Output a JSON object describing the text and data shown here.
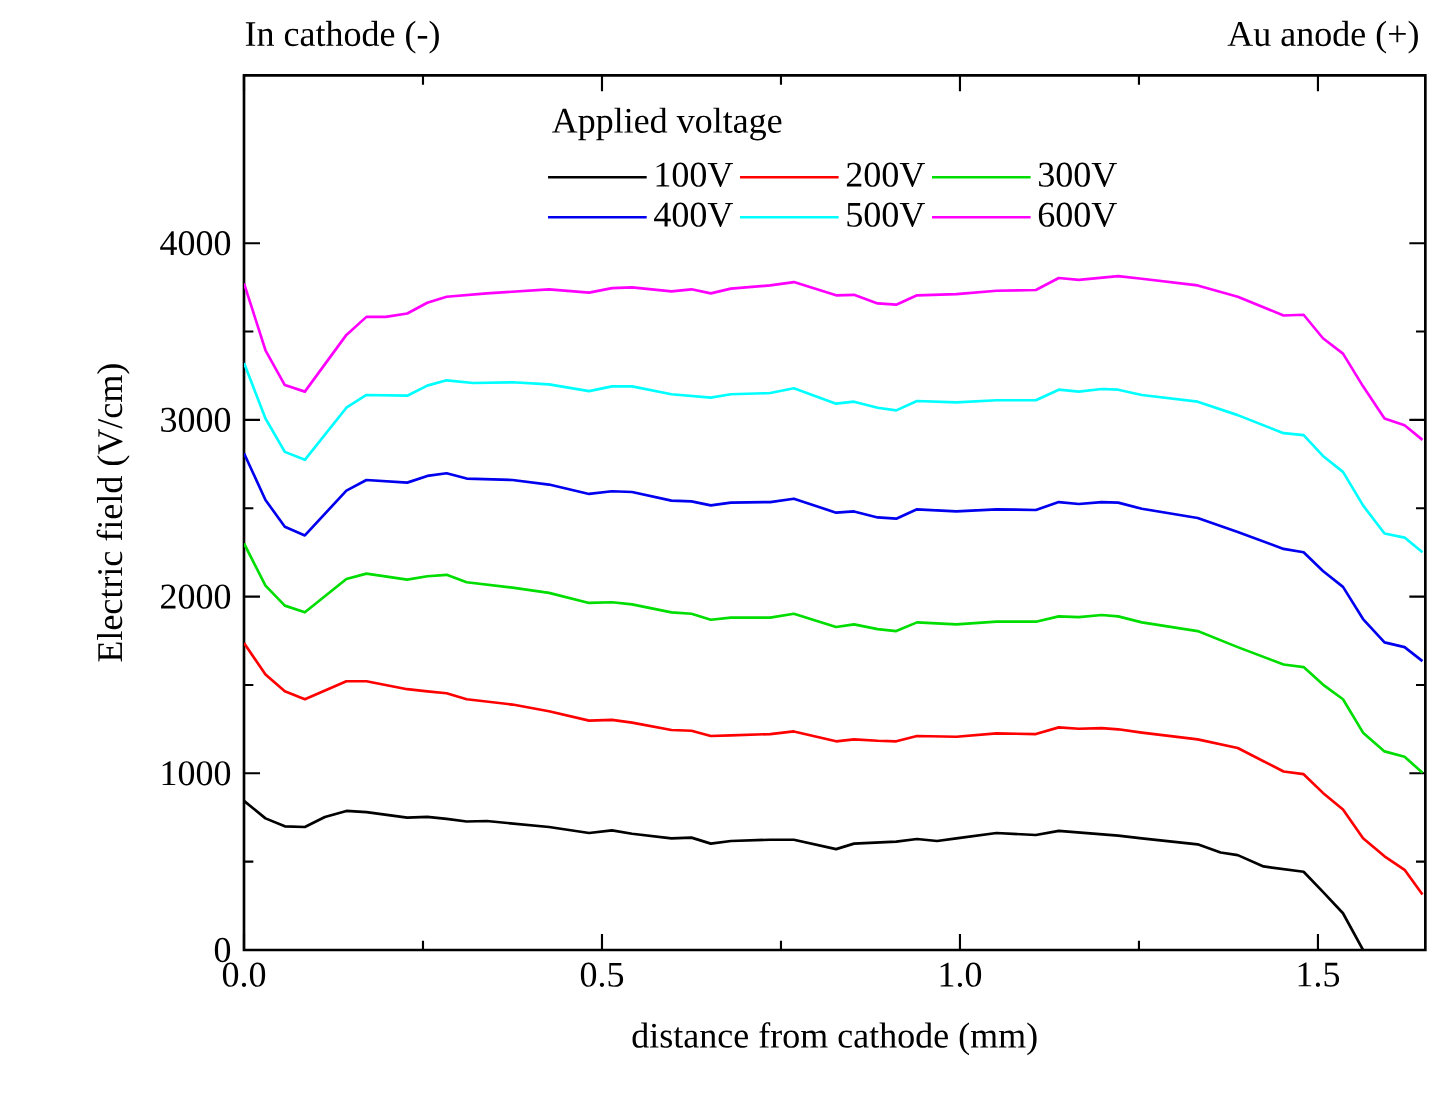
{
  "chart_data": {
    "type": "line",
    "xlabel": "distance from cathode (mm)",
    "ylabel": "Electric field (V/cm)",
    "legend_title": "Applied voltage",
    "annotations": [
      "In cathode (-)",
      "Au anode (+)"
    ],
    "xlim": [
      0,
      1.65
    ],
    "ylim": [
      0,
      4950
    ],
    "xticks": [
      {
        "value": 0,
        "label": "0.0"
      },
      {
        "value": 0.5,
        "label": "0.5"
      },
      {
        "value": 1.0,
        "label": "1.0"
      },
      {
        "value": 1.5,
        "label": "1.5"
      }
    ],
    "yticks": [
      0,
      1000,
      2000,
      3000,
      4000
    ],
    "legend": "top",
    "grid": false,
    "marker": "none",
    "line_style": "solid",
    "series": [
      {
        "name": "100V",
        "color": "#000000",
        "x": [
          0,
          0.03,
          0.057,
          0.085,
          0.113,
          0.143,
          0.171,
          0.228,
          0.256,
          0.283,
          0.311,
          0.339,
          0.426,
          0.482,
          0.514,
          0.542,
          0.597,
          0.625,
          0.652,
          0.68,
          0.735,
          0.768,
          0.827,
          0.852,
          0.911,
          0.94,
          0.968,
          0.995,
          1.051,
          1.106,
          1.138,
          1.221,
          1.254,
          1.332,
          1.364,
          1.388,
          1.424,
          1.48,
          1.507,
          1.535,
          1.563
        ],
        "values": [
          844,
          745,
          700,
          696,
          753,
          787,
          780,
          749,
          753,
          742,
          727,
          730,
          696,
          662,
          677,
          658,
          632,
          636,
          602,
          617,
          624,
          624,
          571,
          602,
          613,
          628,
          617,
          632,
          662,
          651,
          674,
          647,
          632,
          598,
          552,
          537,
          473,
          443,
          329,
          208,
          0
        ]
      },
      {
        "name": "200V",
        "color": "#ff0000",
        "x": [
          0,
          0.03,
          0.057,
          0.085,
          0.143,
          0.171,
          0.228,
          0.256,
          0.283,
          0.311,
          0.375,
          0.426,
          0.482,
          0.514,
          0.542,
          0.597,
          0.625,
          0.652,
          0.68,
          0.735,
          0.768,
          0.827,
          0.852,
          0.885,
          0.911,
          0.94,
          0.995,
          1.051,
          1.106,
          1.138,
          1.166,
          1.198,
          1.221,
          1.254,
          1.332,
          1.388,
          1.452,
          1.48,
          1.507,
          1.535,
          1.563,
          1.593,
          1.621,
          1.646
        ],
        "values": [
          1737,
          1559,
          1464,
          1419,
          1521,
          1521,
          1476,
          1464,
          1453,
          1419,
          1389,
          1351,
          1298,
          1302,
          1287,
          1245,
          1241,
          1211,
          1215,
          1222,
          1237,
          1181,
          1192,
          1184,
          1181,
          1211,
          1207,
          1226,
          1222,
          1260,
          1252,
          1256,
          1249,
          1230,
          1192,
          1143,
          1010,
          995,
          889,
          795,
          632,
          530,
          454,
          314
        ]
      },
      {
        "name": "300V",
        "color": "#00dd00",
        "x": [
          0,
          0.03,
          0.057,
          0.085,
          0.143,
          0.171,
          0.228,
          0.256,
          0.283,
          0.311,
          0.375,
          0.426,
          0.482,
          0.514,
          0.542,
          0.597,
          0.625,
          0.652,
          0.68,
          0.735,
          0.768,
          0.827,
          0.852,
          0.885,
          0.911,
          0.94,
          0.995,
          1.051,
          1.106,
          1.138,
          1.166,
          1.198,
          1.221,
          1.254,
          1.332,
          1.388,
          1.452,
          1.48,
          1.507,
          1.535,
          1.563,
          1.593,
          1.621,
          1.646
        ],
        "values": [
          2301,
          2062,
          1949,
          1911,
          2100,
          2130,
          2096,
          2115,
          2123,
          2081,
          2051,
          2021,
          1964,
          1968,
          1956,
          1911,
          1903,
          1869,
          1881,
          1881,
          1903,
          1828,
          1843,
          1816,
          1805,
          1854,
          1843,
          1858,
          1858,
          1888,
          1884,
          1896,
          1888,
          1854,
          1805,
          1714,
          1616,
          1601,
          1502,
          1419,
          1230,
          1124,
          1094,
          1003
        ]
      },
      {
        "name": "400V",
        "color": "#0000ee",
        "x": [
          0,
          0.03,
          0.057,
          0.085,
          0.143,
          0.171,
          0.228,
          0.256,
          0.283,
          0.311,
          0.375,
          0.426,
          0.482,
          0.514,
          0.542,
          0.597,
          0.625,
          0.652,
          0.68,
          0.735,
          0.768,
          0.827,
          0.852,
          0.885,
          0.911,
          0.94,
          0.995,
          1.051,
          1.106,
          1.138,
          1.166,
          1.198,
          1.221,
          1.254,
          1.332,
          1.388,
          1.452,
          1.48,
          1.507,
          1.535,
          1.563,
          1.593,
          1.621,
          1.646
        ],
        "values": [
          2811,
          2547,
          2395,
          2346,
          2600,
          2660,
          2645,
          2683,
          2698,
          2668,
          2660,
          2634,
          2581,
          2596,
          2592,
          2543,
          2539,
          2516,
          2532,
          2535,
          2554,
          2475,
          2482,
          2448,
          2441,
          2494,
          2482,
          2494,
          2490,
          2535,
          2524,
          2535,
          2532,
          2497,
          2445,
          2365,
          2270,
          2251,
          2145,
          2055,
          1873,
          1741,
          1714,
          1635
        ]
      },
      {
        "name": "500V",
        "color": "#00ffff",
        "x": [
          0,
          0.03,
          0.057,
          0.085,
          0.143,
          0.171,
          0.228,
          0.256,
          0.283,
          0.32,
          0.375,
          0.426,
          0.482,
          0.514,
          0.542,
          0.597,
          0.652,
          0.68,
          0.735,
          0.768,
          0.827,
          0.852,
          0.885,
          0.911,
          0.94,
          0.995,
          1.051,
          1.106,
          1.138,
          1.166,
          1.198,
          1.221,
          1.254,
          1.332,
          1.388,
          1.452,
          1.48,
          1.507,
          1.535,
          1.563,
          1.593,
          1.621,
          1.646
        ],
        "values": [
          3322,
          3008,
          2819,
          2774,
          3069,
          3141,
          3137,
          3194,
          3224,
          3209,
          3213,
          3201,
          3163,
          3190,
          3190,
          3145,
          3126,
          3145,
          3152,
          3179,
          3092,
          3103,
          3069,
          3054,
          3107,
          3099,
          3111,
          3111,
          3171,
          3160,
          3175,
          3171,
          3141,
          3103,
          3027,
          2925,
          2914,
          2796,
          2706,
          2516,
          2357,
          2334,
          2251
        ]
      },
      {
        "name": "600V",
        "color": "#ff00ff",
        "x": [
          0,
          0.03,
          0.057,
          0.085,
          0.143,
          0.171,
          0.198,
          0.228,
          0.256,
          0.283,
          0.339,
          0.426,
          0.482,
          0.514,
          0.542,
          0.597,
          0.625,
          0.652,
          0.68,
          0.735,
          0.768,
          0.827,
          0.852,
          0.885,
          0.911,
          0.94,
          0.995,
          1.051,
          1.106,
          1.138,
          1.166,
          1.221,
          1.254,
          1.332,
          1.388,
          1.452,
          1.48,
          1.507,
          1.535,
          1.563,
          1.593,
          1.621,
          1.646
        ],
        "values": [
          3773,
          3394,
          3197,
          3160,
          3481,
          3583,
          3583,
          3602,
          3663,
          3697,
          3716,
          3739,
          3720,
          3746,
          3750,
          3727,
          3739,
          3716,
          3743,
          3761,
          3780,
          3705,
          3708,
          3659,
          3652,
          3705,
          3712,
          3731,
          3735,
          3803,
          3792,
          3814,
          3799,
          3761,
          3697,
          3591,
          3595,
          3462,
          3375,
          3190,
          3008,
          2970,
          2887
        ]
      }
    ]
  }
}
